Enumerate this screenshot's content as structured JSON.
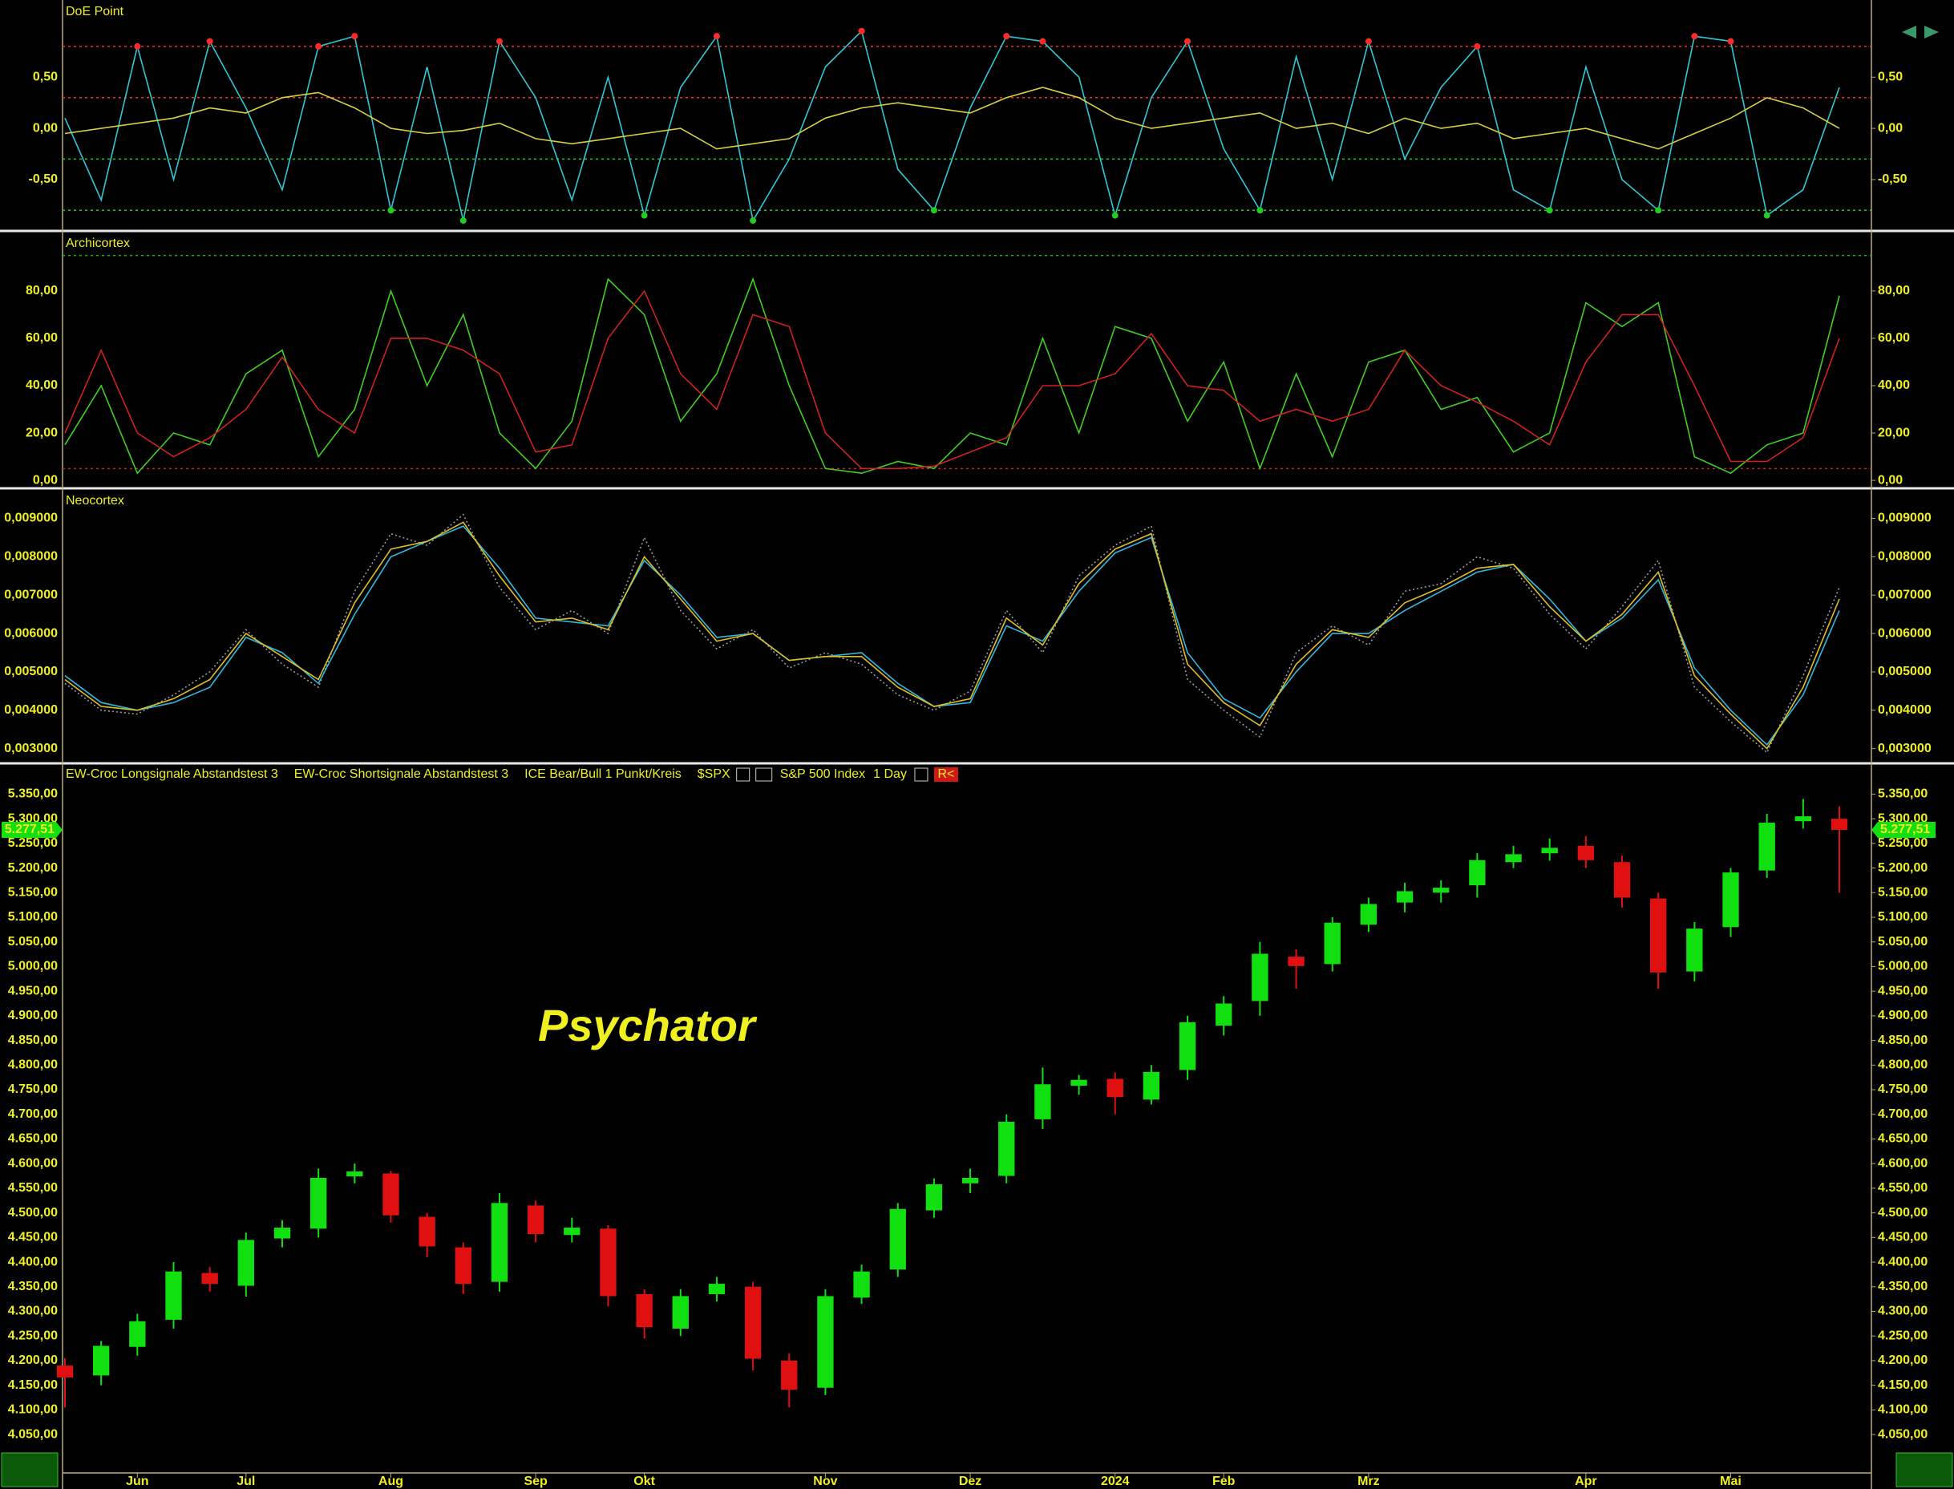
{
  "chart_data": [
    {
      "type": "line",
      "title": "DoE Point",
      "ylim": [
        -0.97,
        1.23
      ],
      "yticks": [
        {
          "value": 0.5,
          "label": "0,50"
        },
        {
          "value": 0,
          "label": "0,00"
        },
        {
          "value": -0.5,
          "label": "-0,50"
        }
      ],
      "ref_lines": [
        {
          "value": 0.8,
          "color": "#ff2a2a"
        },
        {
          "value": 0.3,
          "color": "#ff2a2a"
        },
        {
          "value": -0.3,
          "color": "#22cc22"
        },
        {
          "value": -0.8,
          "color": "#22cc22"
        }
      ],
      "signals": true,
      "series": [
        {
          "color": "#2fc8d8",
          "values": [
            0.1,
            -0.7,
            0.8,
            -0.5,
            0.85,
            0.2,
            -0.6,
            0.8,
            0.9,
            -0.8,
            0.6,
            -0.9,
            0.85,
            0.3,
            -0.7,
            0.5,
            -0.85,
            0.4,
            0.9,
            -0.9,
            -0.3,
            0.6,
            0.95,
            -0.4,
            -0.8,
            0.2,
            0.9,
            0.85,
            0.5,
            -0.85,
            0.3,
            0.85,
            -0.2,
            -0.8,
            0.7,
            -0.5,
            0.85,
            -0.3,
            0.4,
            0.8,
            -0.6,
            -0.8,
            0.6,
            -0.5,
            -0.8,
            0.9,
            0.85,
            -0.85,
            -0.6,
            0.4
          ]
        },
        {
          "color": "#d8d040",
          "values": [
            -0.05,
            0,
            0.05,
            0.1,
            0.2,
            0.15,
            0.3,
            0.35,
            0.2,
            0,
            -0.05,
            -0.02,
            0.05,
            -0.1,
            -0.15,
            -0.1,
            -0.05,
            0,
            -0.2,
            -0.15,
            -0.1,
            0.1,
            0.2,
            0.25,
            0.2,
            0.15,
            0.3,
            0.4,
            0.3,
            0.1,
            0,
            0.05,
            0.1,
            0.15,
            0,
            0.05,
            -0.05,
            0.1,
            0,
            0.05,
            -0.1,
            -0.05,
            0,
            -0.1,
            -0.2,
            -0.05,
            0.1,
            0.3,
            0.2,
            0
          ]
        }
      ]
    },
    {
      "type": "line",
      "title": "Archicortex",
      "ylim": [
        -2,
        104
      ],
      "yticks": [
        {
          "value": 0,
          "label": "0,00"
        },
        {
          "value": 20,
          "label": "20,00"
        },
        {
          "value": 40,
          "label": "40,00"
        },
        {
          "value": 60,
          "label": "60,00"
        },
        {
          "value": 80,
          "label": "80,00"
        }
      ],
      "ref_lines": [
        {
          "value": 95,
          "color": "#22aa22"
        },
        {
          "value": 5,
          "color": "#cc2222"
        }
      ],
      "series": [
        {
          "color": "#40d020",
          "values": [
            15,
            40,
            3,
            20,
            15,
            45,
            55,
            10,
            30,
            80,
            40,
            70,
            20,
            5,
            25,
            85,
            70,
            25,
            45,
            85,
            40,
            5,
            3,
            8,
            5,
            20,
            15,
            60,
            20,
            65,
            60,
            25,
            50,
            5,
            45,
            10,
            50,
            55,
            30,
            35,
            12,
            20,
            75,
            65,
            75,
            10,
            3,
            15,
            20,
            78
          ]
        },
        {
          "color": "#d02020",
          "values": [
            20,
            55,
            20,
            10,
            18,
            30,
            52,
            30,
            20,
            60,
            60,
            55,
            45,
            12,
            15,
            60,
            80,
            45,
            30,
            70,
            65,
            20,
            5,
            5,
            6,
            12,
            18,
            40,
            40,
            45,
            62,
            40,
            38,
            25,
            30,
            25,
            30,
            55,
            40,
            33,
            25,
            15,
            50,
            70,
            70,
            40,
            8,
            8,
            18,
            60
          ]
        }
      ]
    },
    {
      "type": "line",
      "title": "Neocortex",
      "ylim": [
        0.0027,
        0.0097
      ],
      "yticks": [
        {
          "value": 0.003,
          "label": "0,003000"
        },
        {
          "value": 0.004,
          "label": "0,004000"
        },
        {
          "value": 0.005,
          "label": "0,005000"
        },
        {
          "value": 0.006,
          "label": "0,006000"
        },
        {
          "value": 0.007,
          "label": "0,007000"
        },
        {
          "value": 0.008,
          "label": "0,008000"
        },
        {
          "value": 0.009,
          "label": "0,009000"
        }
      ],
      "series": [
        {
          "color": "#9a9a9a",
          "dash": true,
          "values": [
            0.0047,
            0.004,
            0.0039,
            0.0044,
            0.005,
            0.0061,
            0.0052,
            0.0046,
            0.0071,
            0.0086,
            0.0083,
            0.0091,
            0.0072,
            0.0061,
            0.0066,
            0.006,
            0.0085,
            0.0066,
            0.0056,
            0.0061,
            0.0051,
            0.0055,
            0.0052,
            0.0044,
            0.004,
            0.0045,
            0.0066,
            0.0055,
            0.0075,
            0.0083,
            0.0088,
            0.0048,
            0.004,
            0.0033,
            0.0055,
            0.0062,
            0.0057,
            0.0071,
            0.0073,
            0.008,
            0.0077,
            0.0065,
            0.0056,
            0.0067,
            0.0079,
            0.0046,
            0.0037,
            0.0029,
            0.0049,
            0.0072
          ]
        },
        {
          "color": "#2fb8e0",
          "values": [
            0.0049,
            0.0042,
            0.004,
            0.0042,
            0.0046,
            0.0059,
            0.0055,
            0.0047,
            0.0065,
            0.008,
            0.0084,
            0.0088,
            0.0077,
            0.0064,
            0.0063,
            0.0062,
            0.0079,
            0.007,
            0.0059,
            0.006,
            0.0053,
            0.0054,
            0.0055,
            0.0047,
            0.0041,
            0.0042,
            0.0062,
            0.0058,
            0.0071,
            0.0081,
            0.0085,
            0.0055,
            0.0043,
            0.0038,
            0.005,
            0.006,
            0.006,
            0.0066,
            0.0071,
            0.0076,
            0.0078,
            0.0069,
            0.0058,
            0.0064,
            0.0074,
            0.0051,
            0.004,
            0.0031,
            0.0044,
            0.0066
          ]
        },
        {
          "color": "#e0c020",
          "values": [
            0.0048,
            0.0041,
            0.004,
            0.0043,
            0.0048,
            0.006,
            0.0054,
            0.0048,
            0.0068,
            0.0082,
            0.0084,
            0.0089,
            0.0075,
            0.0063,
            0.0064,
            0.0061,
            0.008,
            0.0069,
            0.0058,
            0.006,
            0.0053,
            0.0054,
            0.0054,
            0.0046,
            0.0041,
            0.0043,
            0.0064,
            0.0057,
            0.0073,
            0.0082,
            0.0086,
            0.0052,
            0.0042,
            0.0036,
            0.0052,
            0.0061,
            0.0059,
            0.0068,
            0.0072,
            0.0077,
            0.0078,
            0.0067,
            0.0058,
            0.0065,
            0.0076,
            0.0049,
            0.0039,
            0.003,
            0.0046,
            0.0069
          ]
        }
      ]
    },
    {
      "type": "candlestick",
      "legend": [
        "EW-Croc Longsignale Abstandstest 3",
        "EW-Croc Shortsignale Abstandstest 3",
        "ICE Bear/Bull 1 Punkt/Kreis"
      ],
      "symbol": "$SPX",
      "instrument": "S&P 500 Index",
      "interval": "1 Day",
      "badge": "R<",
      "watermark": "Psychator",
      "up_color": "#10e010",
      "down_color": "#e01010",
      "categories": [
        null,
        null,
        "Jun",
        null,
        null,
        "Jul",
        null,
        null,
        null,
        "Aug",
        null,
        null,
        null,
        "Sep",
        null,
        null,
        "Okt",
        null,
        null,
        null,
        null,
        "Nov",
        null,
        null,
        null,
        "Dez",
        null,
        null,
        null,
        "2024",
        null,
        null,
        "Feb",
        null,
        null,
        null,
        "Mrz",
        null,
        null,
        null,
        null,
        null,
        "Apr",
        null,
        null,
        null,
        "Mai",
        null,
        null,
        null
      ],
      "open": [
        4190,
        4170,
        4228,
        4283,
        4378,
        4352,
        4448,
        4468,
        4574,
        4580,
        4492,
        4430,
        4360,
        4515,
        4455,
        4468,
        4335,
        4265,
        4335,
        4350,
        4200,
        4145,
        4328,
        4385,
        4505,
        4560,
        4575,
        4690,
        4758,
        4772,
        4730,
        4790,
        4880,
        4930,
        5020,
        5005,
        5085,
        5130,
        5150,
        5165,
        5212,
        5230,
        5245,
        5212,
        5138,
        4990,
        5080,
        5195,
        5295,
        5300
      ],
      "high": [
        4205,
        4240,
        4295,
        4400,
        4390,
        4460,
        4485,
        4590,
        4600,
        4585,
        4500,
        4440,
        4540,
        4525,
        4490,
        4475,
        4345,
        4345,
        4370,
        4360,
        4215,
        4345,
        4395,
        4520,
        4570,
        4590,
        4700,
        4795,
        4780,
        4785,
        4800,
        4900,
        4940,
        5050,
        5035,
        5100,
        5140,
        5170,
        5175,
        5230,
        5245,
        5260,
        5265,
        5225,
        5150,
        5090,
        5200,
        5310,
        5340,
        5325
      ],
      "low": [
        4105,
        4150,
        4210,
        4265,
        4340,
        4330,
        4430,
        4450,
        4560,
        4480,
        4410,
        4335,
        4340,
        4440,
        4440,
        4310,
        4245,
        4250,
        4320,
        4180,
        4105,
        4130,
        4315,
        4370,
        4490,
        4540,
        4560,
        4670,
        4740,
        4700,
        4720,
        4770,
        4860,
        4900,
        4955,
        4990,
        5070,
        5110,
        5130,
        5140,
        5200,
        5215,
        5200,
        5120,
        4955,
        4970,
        5060,
        5180,
        5280,
        5150
      ],
      "close": [
        4166,
        4230,
        4280,
        4381,
        4356,
        4445,
        4470,
        4571,
        4584,
        4495,
        4432,
        4356,
        4520,
        4457,
        4470,
        4331,
        4268,
        4331,
        4356,
        4204,
        4141,
        4331,
        4381,
        4508,
        4558,
        4571,
        4685,
        4761,
        4770,
        4735,
        4786,
        4887,
        4925,
        5026,
        5001,
        5089,
        5127,
        5153,
        5160,
        5216,
        5228,
        5241,
        5216,
        5140,
        4988,
        5077,
        5191,
        5292,
        5305,
        5277.51
      ],
      "last_value": {
        "value": 5277.51,
        "label": "5.277,51"
      },
      "ylim": [
        3972,
        5406
      ],
      "yticks": [
        {
          "value": 4050,
          "label": "4.050,00"
        },
        {
          "value": 4100,
          "label": "4.100,00"
        },
        {
          "value": 4150,
          "label": "4.150,00"
        },
        {
          "value": 4200,
          "label": "4.200,00"
        },
        {
          "value": 4250,
          "label": "4.250,00"
        },
        {
          "value": 4300,
          "label": "4.300,00"
        },
        {
          "value": 4350,
          "label": "4.350,00"
        },
        {
          "value": 4400,
          "label": "4.400,00"
        },
        {
          "value": 4450,
          "label": "4.450,00"
        },
        {
          "value": 4500,
          "label": "4.500,00"
        },
        {
          "value": 4550,
          "label": "4.550,00"
        },
        {
          "value": 4600,
          "label": "4.600,00"
        },
        {
          "value": 4650,
          "label": "4.650,00"
        },
        {
          "value": 4700,
          "label": "4.700,00"
        },
        {
          "value": 4750,
          "label": "4.750,00"
        },
        {
          "value": 4800,
          "label": "4.800,00"
        },
        {
          "value": 4850,
          "label": "4.850,00"
        },
        {
          "value": 4900,
          "label": "4.900,00"
        },
        {
          "value": 4950,
          "label": "4.950,00"
        },
        {
          "value": 5000,
          "label": "5.000,00"
        },
        {
          "value": 5050,
          "label": "5.050,00"
        },
        {
          "value": 5100,
          "label": "5.100,00"
        },
        {
          "value": 5150,
          "label": "5.150,00"
        },
        {
          "value": 5200,
          "label": "5.200,00"
        },
        {
          "value": 5250,
          "label": "5.250,00"
        },
        {
          "value": 5300,
          "label": "5.300,00"
        },
        {
          "value": 5350,
          "label": "5.350,00"
        }
      ]
    }
  ]
}
